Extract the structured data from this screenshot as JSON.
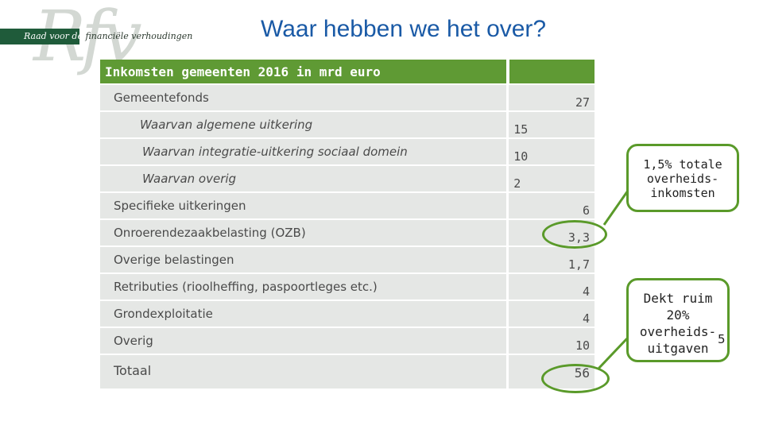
{
  "logo": {
    "letters": "Rfv",
    "text_part1": "Raad voor de",
    "text_part2": " financiële verhoudingen"
  },
  "title": "Waar hebben we het over?",
  "table": {
    "header": "Inkomsten gemeenten 2016 in mrd euro",
    "rows": [
      {
        "label": "Gemeentefonds",
        "value": "27"
      },
      {
        "label": "Waarvan algemene uitkering",
        "value": "15"
      },
      {
        "label": "Waarvan integratie-uitkering sociaal domein",
        "value": "10"
      },
      {
        "label": "Waarvan overig",
        "value": "2"
      },
      {
        "label": "Specifieke uitkeringen",
        "value": "6"
      },
      {
        "label": "Onroerendezaakbelasting (OZB)",
        "value": "3,3"
      },
      {
        "label": "Overige belastingen",
        "value": "1,7"
      },
      {
        "label": "Retributies (rioolheffing, paspoortleges etc.)",
        "value": "4"
      },
      {
        "label": "Grondexploitatie",
        "value": "4"
      },
      {
        "label": "Overig",
        "value": "10"
      },
      {
        "label": "Totaal",
        "value": "56"
      }
    ]
  },
  "callouts": {
    "first": [
      "1,5% totale",
      "overheids-",
      "inkomsten"
    ],
    "second": [
      "Dekt ruim",
      "20%",
      "overheids-",
      "uitgaven"
    ]
  },
  "page_number": "5",
  "colors": {
    "title": "#1a5aa6",
    "header_bg": "#5f9a34",
    "row_bg": "#e5e7e5",
    "accent_green": "#5a9a2a",
    "logo_green": "#1f5b3a"
  }
}
